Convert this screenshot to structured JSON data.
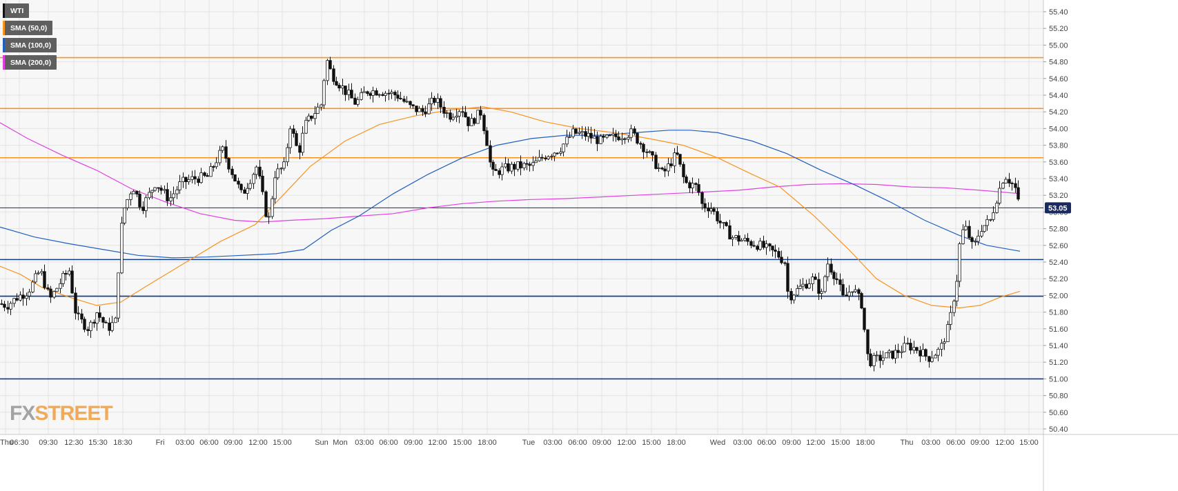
{
  "chart_data": {
    "type": "candlestick",
    "symbol": "WTI",
    "legend": [
      {
        "label": "WTI",
        "color": "#111111"
      },
      {
        "label": "SMA (50,0)",
        "color": "#f7931e"
      },
      {
        "label": "SMA (100,0)",
        "color": "#1f5fbf"
      },
      {
        "label": "SMA (200,0)",
        "color": "#e040e0"
      }
    ],
    "last_price_label": "53.05",
    "last_price": 53.05,
    "ylim": [
      50.35,
      55.48
    ],
    "y_ticks": [
      "55.40",
      "55.20",
      "55.00",
      "54.80",
      "54.60",
      "54.40",
      "54.20",
      "54.00",
      "53.80",
      "53.60",
      "53.40",
      "53.20",
      "53.00",
      "52.80",
      "52.60",
      "52.40",
      "52.20",
      "52.00",
      "51.80",
      "51.60",
      "51.40",
      "51.20",
      "51.00",
      "50.80",
      "50.60",
      "50.40"
    ],
    "x_ticks": [
      "Thu",
      "06:30",
      "09:30",
      "12:30",
      "15:30",
      "18:30",
      "Fri",
      "03:00",
      "06:00",
      "09:00",
      "12:00",
      "15:00",
      "Sun",
      "Mon",
      "03:00",
      "06:00",
      "09:00",
      "12:00",
      "15:00",
      "18:00",
      "Tue",
      "03:00",
      "06:00",
      "09:00",
      "12:00",
      "15:00",
      "18:00",
      "Wed",
      "03:00",
      "06:00",
      "09:00",
      "12:00",
      "15:00",
      "18:00",
      "Thu",
      "03:00",
      "06:00",
      "09:00",
      "12:00",
      "15:00"
    ],
    "levels": [
      {
        "value": 54.85,
        "color": "#f7931e"
      },
      {
        "value": 54.24,
        "color": "#f7931e"
      },
      {
        "value": 53.65,
        "color": "#f7931e"
      },
      {
        "value": 52.43,
        "color": "#0d3d8f"
      },
      {
        "value": 51.99,
        "color": "#0d3d8f"
      },
      {
        "value": 51.0,
        "color": "#0d3d8f"
      }
    ],
    "price_anchors": [
      [
        0,
        51.9
      ],
      [
        10,
        51.88
      ],
      [
        25,
        51.98
      ],
      [
        40,
        52.05
      ],
      [
        58,
        52.3
      ],
      [
        72,
        51.95
      ],
      [
        90,
        52.2
      ],
      [
        100,
        52.3
      ],
      [
        110,
        51.75
      ],
      [
        128,
        51.6
      ],
      [
        140,
        51.8
      ],
      [
        155,
        51.6
      ],
      [
        168,
        51.7
      ],
      [
        173,
        52.7
      ],
      [
        180,
        53.05
      ],
      [
        192,
        53.32
      ],
      [
        205,
        53.05
      ],
      [
        225,
        53.35
      ],
      [
        245,
        53.15
      ],
      [
        262,
        53.35
      ],
      [
        280,
        53.4
      ],
      [
        300,
        53.42
      ],
      [
        322,
        53.75
      ],
      [
        332,
        53.55
      ],
      [
        350,
        53.2
      ],
      [
        372,
        53.55
      ],
      [
        388,
        52.85
      ],
      [
        398,
        53.45
      ],
      [
        412,
        53.55
      ],
      [
        420,
        54.05
      ],
      [
        432,
        53.7
      ],
      [
        442,
        54.05
      ],
      [
        456,
        54.2
      ],
      [
        466,
        54.3
      ],
      [
        472,
        54.85
      ],
      [
        480,
        54.65
      ],
      [
        500,
        54.45
      ],
      [
        515,
        54.3
      ],
      [
        530,
        54.45
      ],
      [
        550,
        54.45
      ],
      [
        575,
        54.4
      ],
      [
        595,
        54.25
      ],
      [
        612,
        54.2
      ],
      [
        630,
        54.35
      ],
      [
        650,
        54.15
      ],
      [
        668,
        54.25
      ],
      [
        680,
        54.05
      ],
      [
        696,
        54.2
      ],
      [
        705,
        53.85
      ],
      [
        712,
        53.45
      ],
      [
        730,
        53.52
      ],
      [
        750,
        53.55
      ],
      [
        770,
        53.55
      ],
      [
        790,
        53.68
      ],
      [
        810,
        53.75
      ],
      [
        830,
        53.95
      ],
      [
        850,
        53.92
      ],
      [
        870,
        53.85
      ],
      [
        890,
        53.9
      ],
      [
        915,
        53.95
      ],
      [
        935,
        53.75
      ],
      [
        960,
        53.45
      ],
      [
        980,
        53.7
      ],
      [
        992,
        53.35
      ],
      [
        1010,
        53.3
      ],
      [
        1017,
        53.08
      ],
      [
        1030,
        53.05
      ],
      [
        1045,
        52.85
      ],
      [
        1060,
        52.7
      ],
      [
        1080,
        52.65
      ],
      [
        1100,
        52.6
      ],
      [
        1125,
        52.5
      ],
      [
        1137,
        52.4
      ],
      [
        1142,
        51.98
      ],
      [
        1160,
        52.1
      ],
      [
        1178,
        52.2
      ],
      [
        1190,
        52.0
      ],
      [
        1198,
        52.4
      ],
      [
        1212,
        52.2
      ],
      [
        1222,
        51.95
      ],
      [
        1235,
        52.1
      ],
      [
        1248,
        51.9
      ],
      [
        1258,
        51.2
      ],
      [
        1275,
        51.25
      ],
      [
        1295,
        51.3
      ],
      [
        1315,
        51.4
      ],
      [
        1330,
        51.35
      ],
      [
        1345,
        51.25
      ],
      [
        1362,
        51.35
      ],
      [
        1375,
        51.65
      ],
      [
        1386,
        52.2
      ],
      [
        1392,
        52.75
      ],
      [
        1400,
        52.8
      ],
      [
        1410,
        52.55
      ],
      [
        1420,
        52.8
      ],
      [
        1435,
        52.9
      ],
      [
        1445,
        53.2
      ],
      [
        1455,
        53.45
      ],
      [
        1470,
        53.3
      ],
      [
        1478,
        53.0
      ]
    ],
    "sma50": [
      [
        0,
        52.35
      ],
      [
        30,
        52.25
      ],
      [
        60,
        52.1
      ],
      [
        100,
        51.98
      ],
      [
        140,
        51.88
      ],
      [
        175,
        51.92
      ],
      [
        210,
        52.1
      ],
      [
        260,
        52.35
      ],
      [
        320,
        52.65
      ],
      [
        370,
        52.85
      ],
      [
        410,
        53.2
      ],
      [
        450,
        53.55
      ],
      [
        500,
        53.85
      ],
      [
        550,
        54.05
      ],
      [
        600,
        54.15
      ],
      [
        650,
        54.22
      ],
      [
        700,
        54.26
      ],
      [
        740,
        54.2
      ],
      [
        790,
        54.08
      ],
      [
        840,
        54.0
      ],
      [
        890,
        53.95
      ],
      [
        940,
        53.88
      ],
      [
        990,
        53.8
      ],
      [
        1040,
        53.65
      ],
      [
        1090,
        53.45
      ],
      [
        1130,
        53.3
      ],
      [
        1180,
        52.95
      ],
      [
        1230,
        52.55
      ],
      [
        1270,
        52.2
      ],
      [
        1310,
        52.0
      ],
      [
        1350,
        51.88
      ],
      [
        1390,
        51.85
      ],
      [
        1420,
        51.88
      ],
      [
        1450,
        51.98
      ],
      [
        1478,
        52.05
      ]
    ],
    "sma100": [
      [
        0,
        52.82
      ],
      [
        50,
        52.7
      ],
      [
        100,
        52.62
      ],
      [
        150,
        52.55
      ],
      [
        200,
        52.48
      ],
      [
        250,
        52.45
      ],
      [
        300,
        52.46
      ],
      [
        350,
        52.48
      ],
      [
        400,
        52.5
      ],
      [
        440,
        52.55
      ],
      [
        480,
        52.78
      ],
      [
        520,
        52.95
      ],
      [
        570,
        53.22
      ],
      [
        620,
        53.45
      ],
      [
        670,
        53.65
      ],
      [
        720,
        53.8
      ],
      [
        770,
        53.88
      ],
      [
        820,
        53.92
      ],
      [
        870,
        53.92
      ],
      [
        920,
        53.95
      ],
      [
        970,
        53.98
      ],
      [
        1000,
        53.98
      ],
      [
        1040,
        53.95
      ],
      [
        1090,
        53.85
      ],
      [
        1140,
        53.7
      ],
      [
        1190,
        53.5
      ],
      [
        1240,
        53.32
      ],
      [
        1290,
        53.12
      ],
      [
        1340,
        52.9
      ],
      [
        1390,
        52.72
      ],
      [
        1430,
        52.6
      ],
      [
        1478,
        52.53
      ]
    ],
    "sma200": [
      [
        0,
        54.07
      ],
      [
        40,
        53.88
      ],
      [
        90,
        53.68
      ],
      [
        140,
        53.5
      ],
      [
        190,
        53.28
      ],
      [
        240,
        53.12
      ],
      [
        290,
        52.98
      ],
      [
        340,
        52.9
      ],
      [
        380,
        52.88
      ],
      [
        420,
        52.9
      ],
      [
        470,
        52.92
      ],
      [
        520,
        52.95
      ],
      [
        570,
        52.98
      ],
      [
        620,
        53.05
      ],
      [
        670,
        53.1
      ],
      [
        720,
        53.13
      ],
      [
        770,
        53.15
      ],
      [
        820,
        53.16
      ],
      [
        870,
        53.18
      ],
      [
        920,
        53.2
      ],
      [
        970,
        53.22
      ],
      [
        1020,
        53.24
      ],
      [
        1070,
        53.26
      ],
      [
        1120,
        53.3
      ],
      [
        1170,
        53.33
      ],
      [
        1220,
        53.34
      ],
      [
        1270,
        53.33
      ],
      [
        1320,
        53.3
      ],
      [
        1370,
        53.29
      ],
      [
        1420,
        53.26
      ],
      [
        1450,
        53.24
      ],
      [
        1478,
        53.22
      ]
    ]
  },
  "branding": {
    "fx": "FX",
    "street": "STREET"
  }
}
